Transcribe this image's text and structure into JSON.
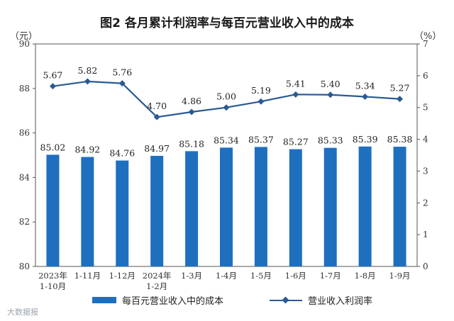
{
  "title": "图2 各月累计利润率与每百元营业收入中的成本",
  "left_unit": "（元）",
  "right_unit": "（%）",
  "watermark": "大数据报",
  "chart_data": {
    "type": "bar+line",
    "categories": [
      "2023年\n1-10月",
      "1-11月",
      "1-12月",
      "2024年\n1-2月",
      "1-3月",
      "1-4月",
      "1-5月",
      "1-6月",
      "1-7月",
      "1-8月",
      "1-9月"
    ],
    "series": [
      {
        "name": "每百元营业收入中的成本",
        "type": "bar",
        "axis": "left",
        "values": [
          85.02,
          84.92,
          84.76,
          84.97,
          85.18,
          85.34,
          85.37,
          85.27,
          85.33,
          85.39,
          85.38
        ],
        "color": "#1f6fbf"
      },
      {
        "name": "营业收入利润率",
        "type": "line",
        "axis": "right",
        "values": [
          5.67,
          5.82,
          5.76,
          4.7,
          4.86,
          5.0,
          5.19,
          5.41,
          5.4,
          5.34,
          5.27
        ],
        "color": "#2a5a93"
      }
    ],
    "left_axis": {
      "ylim": [
        80,
        90
      ],
      "ticks": [
        80,
        82,
        84,
        86,
        88,
        90
      ]
    },
    "right_axis": {
      "ylim": [
        0,
        7
      ],
      "ticks": [
        0,
        1,
        2,
        3,
        4,
        5,
        6,
        7
      ]
    },
    "legend_position": "bottom",
    "grid": false
  }
}
